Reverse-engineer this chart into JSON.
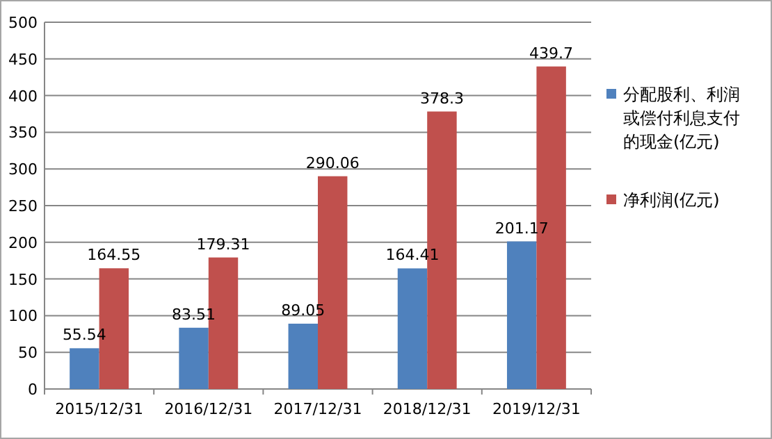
{
  "chart_data": {
    "type": "bar",
    "categories": [
      "2015/12/31",
      "2016/12/31",
      "2017/12/31",
      "2018/12/31",
      "2019/12/31"
    ],
    "series": [
      {
        "name": "分配股利、利润或偿付利息支付的现金(亿元)",
        "color": "#4f81bd",
        "values": [
          55.54,
          83.51,
          89.05,
          164.41,
          201.17
        ]
      },
      {
        "name": "净利润(亿元)",
        "color": "#c0504d",
        "values": [
          164.55,
          179.31,
          290.06,
          378.3,
          439.7
        ]
      }
    ],
    "ylim": [
      0,
      500
    ],
    "yticks": [
      0,
      50,
      100,
      150,
      200,
      250,
      300,
      350,
      400,
      450,
      500
    ],
    "grid": "y",
    "legend": "right",
    "data_labels": true
  }
}
